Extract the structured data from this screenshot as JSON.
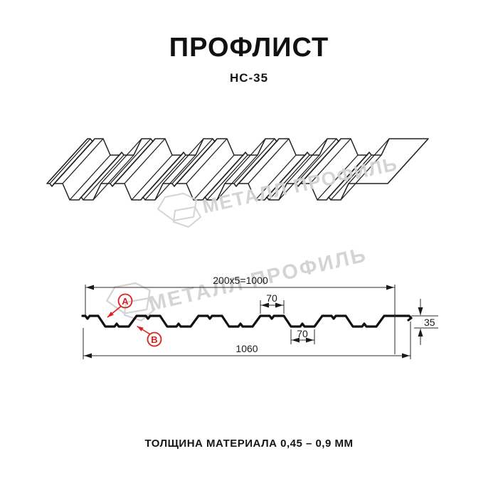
{
  "header": {
    "title": "ПРОФЛИСТ",
    "subtitle": "НС-35"
  },
  "footer": {
    "thickness_note": "ТОЛЩИНА МАТЕРИАЛА 0,45 – 0,9 ММ"
  },
  "watermark": {
    "text": "МЕТАЛЛ ПРОФИЛЬ",
    "logo": "metall-profil-logo",
    "color": "#d2d2d2"
  },
  "drawing": {
    "profile_name": "НС-35",
    "dimensions": {
      "length_formula": "200x5=1000",
      "overall_width": "1060",
      "crest_width": "70",
      "trough_width": "70",
      "profile_height": "35"
    },
    "markers": {
      "a": "А",
      "b": "В"
    },
    "colors": {
      "line": "#1a1a1a",
      "marker_red": "#e01d1d",
      "watermark_gray": "#d2d2d2"
    }
  }
}
